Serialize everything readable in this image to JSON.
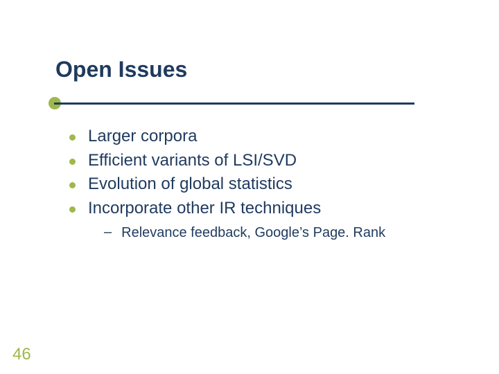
{
  "slide": {
    "title": "Open Issues",
    "title_color": "#1f3a5f",
    "title_fontsize": 32,
    "title_weight": "bold",
    "underline": {
      "ball_color": "#9fb84a",
      "ball_diameter": 18,
      "line_color": "#1f3a5f",
      "line_width": 520,
      "line_height": 3
    },
    "bullets": [
      {
        "text": "Larger corpora"
      },
      {
        "text": "Efficient variants of LSI/SVD"
      },
      {
        "text": "Evolution of global statistics"
      },
      {
        "text": "Incorporate other IR techniques"
      }
    ],
    "bullet_color": "#9fb84a",
    "bullet_diameter": 9,
    "bullet_text_color": "#1f3a5f",
    "bullet_fontsize": 24,
    "sub_bullets": [
      {
        "text": "Relevance feedback, Google’s Page. Rank"
      }
    ],
    "sub_dash": "–",
    "sub_text_color": "#1f3a5f",
    "sub_fontsize": 20,
    "page_number": "46",
    "page_number_color": "#9fb84a",
    "page_number_fontsize": 24,
    "background_color": "#ffffff"
  }
}
